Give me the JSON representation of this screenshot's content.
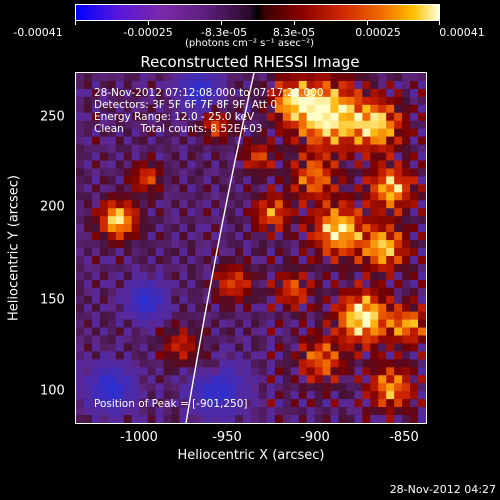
{
  "colorbar": {
    "ticks": [
      "-0.00041",
      "-0.00025",
      "-8.3e-05",
      "8.3e-05",
      "0.00025",
      "0.00041"
    ],
    "units": "(photons cm⁻² s⁻¹ asec⁻²)",
    "colors": [
      "#0000ff",
      "#7a2aa8",
      "#000000",
      "#8a0000",
      "#f06a00",
      "#ffffe0"
    ]
  },
  "title": "Reconstructed RHESSI Image",
  "info": {
    "line1": "28-Nov-2012 07:12:08.000 to 07:17:22.000",
    "line2": "Detectors: 3F 5F 6F 7F 8F 9F, Att 0",
    "line3": "Energy Range: 12.0 - 25.0 keV",
    "line4": "Clean     Total counts: 8.52E+03"
  },
  "peak": "Position of Peak = [-901,250]",
  "axes": {
    "xlabel": "Heliocentric X (arcsec)",
    "ylabel": "Heliocentric Y (arcsec)",
    "xticks": [
      "-1000",
      "-950",
      "-900",
      "-850"
    ],
    "yticks": [
      "250",
      "200",
      "150",
      "100"
    ],
    "xlim": [
      -1035,
      -835
    ],
    "ylim": [
      80,
      280
    ]
  },
  "timestamp": "28-Nov-2012 04:27"
}
